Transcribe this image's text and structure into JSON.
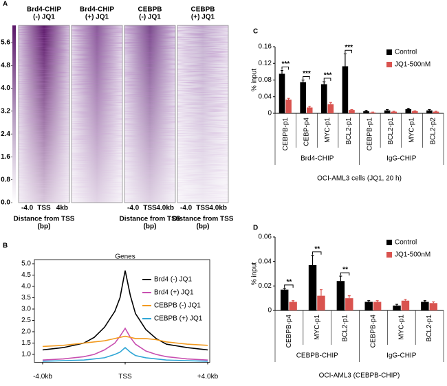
{
  "chart_data": [
    {
      "type": "heatmap",
      "panel": "A",
      "columns": [
        {
          "title": [
            "Brd4-CHIP",
            "(-) JQ1"
          ],
          "xticks": [
            "-4.0",
            "TSS",
            "4kb"
          ],
          "xlabel": [
            "Distance from TSS",
            "(bp)"
          ]
        },
        {
          "title": [
            "Brd4-CHIP",
            "(+) JQ1"
          ]
        },
        {
          "title": [
            "CEBPB",
            "(-) JQ1"
          ],
          "xticks": [
            "-4.0",
            "TSS",
            "4.0kb"
          ],
          "xlabel": [
            "Distance from TSS",
            "(bp)"
          ]
        },
        {
          "title": [
            "CEBPB",
            "(+) JQ1"
          ],
          "xticks": [
            "-4.0",
            "TSS",
            "4.0kb"
          ],
          "xlabel": [
            "Distance from TSS",
            "(bp)"
          ]
        }
      ],
      "clim": [
        0,
        6.2
      ],
      "cticks": [
        5.6,
        4.8,
        {
          "value": 4,
          "label": "4.0"
        },
        3.2,
        2.4,
        1.6,
        0.8,
        {
          "value": 0,
          "label": "0.0"
        }
      ],
      "colors": [
        "#ffffff",
        "#5b1769"
      ]
    },
    {
      "type": "line",
      "panel": "B",
      "title": "Genes",
      "x": [
        -4,
        -3,
        -2,
        -1.5,
        -1,
        -0.5,
        -0.25,
        0,
        0.25,
        0.5,
        1,
        1.5,
        2,
        3,
        4
      ],
      "xlim": [
        -4,
        4
      ],
      "xticks": [
        {
          "value": -4,
          "label": "-4.0kb"
        },
        {
          "value": 0,
          "label": "TSS"
        },
        {
          "value": 4,
          "label": "+4.0kb"
        }
      ],
      "ylim": [
        0.65,
        5
      ],
      "yticks": [
        {
          "value": 1,
          "label": "1.0"
        },
        1.5,
        {
          "value": 2,
          "label": "2.0"
        },
        2.5,
        {
          "value": 3,
          "label": "3.0"
        },
        3.5,
        {
          "value": 4,
          "label": "4.0"
        },
        4.5,
        {
          "value": 5,
          "label": "5.0"
        }
      ],
      "legend": "upper right",
      "series": [
        {
          "name": "Brd4 (-) JQ1",
          "color": "#000000",
          "values": [
            1.2,
            1.3,
            1.5,
            1.75,
            2.2,
            2.9,
            3.5,
            4.7,
            3.6,
            2.8,
            2.1,
            1.7,
            1.45,
            1.3,
            1.2
          ]
        },
        {
          "name": "Brd4 (+) JQ1",
          "color": "#c84fb0",
          "values": [
            0.75,
            0.8,
            0.9,
            1.0,
            1.2,
            1.5,
            1.8,
            2.15,
            1.75,
            1.45,
            1.15,
            1.0,
            0.9,
            0.8,
            0.75
          ]
        },
        {
          "name": "CEBPB (-) JQ1",
          "color": "#f29a1f",
          "values": [
            1.35,
            1.4,
            1.5,
            1.55,
            1.6,
            1.7,
            1.75,
            1.8,
            1.75,
            1.7,
            1.7,
            1.65,
            1.55,
            1.45,
            1.4
          ]
        },
        {
          "name": "CEBPB (+) JQ1",
          "color": "#2fa6d6",
          "values": [
            0.7,
            0.72,
            0.75,
            0.8,
            0.85,
            1.0,
            1.1,
            1.3,
            1.1,
            0.95,
            0.85,
            0.8,
            0.75,
            0.72,
            0.7
          ]
        }
      ]
    },
    {
      "type": "bar",
      "panel": "C",
      "ylabel": "% input",
      "xlabel": "OCI-AML3 cells (JQ1, 20 h)",
      "groups": [
        {
          "name": "Brd4-CHIP",
          "categories": [
            "CEBPB-p1",
            "CEBP-p4",
            "MYC-p1",
            "BCL2-p1"
          ]
        },
        {
          "name": "IgG-CHIP",
          "categories": [
            "CEBPB-p1",
            "BCL2-p1",
            "MYC-p1",
            "BCL2-p2"
          ]
        }
      ],
      "ylim": [
        0,
        0.16
      ],
      "yticks": [
        0,
        0.04,
        0.08,
        0.12,
        0.16
      ],
      "legend": "upper right",
      "series": [
        {
          "name": "Control",
          "color": "#000000",
          "values": [
            0.095,
            0.075,
            0.07,
            0.113,
            0.005,
            0.007,
            0.01,
            0.007
          ],
          "errors": [
            0.008,
            0.005,
            0.006,
            0.03,
            0.002,
            0.002,
            0.002,
            0.002
          ]
        },
        {
          "name": "JQ1-500nM",
          "color": "#d9534f",
          "values": [
            0.033,
            0.014,
            0.022,
            0.008,
            0.002,
            0.004,
            0.005,
            0.004
          ],
          "errors": [
            0.003,
            0.003,
            0.004,
            0.001,
            0.001,
            0.001,
            0.001,
            0.001
          ]
        }
      ],
      "annotations": [
        "***",
        "***",
        "***",
        "***",
        null,
        null,
        null,
        null
      ]
    },
    {
      "type": "bar",
      "panel": "D",
      "ylabel": "% input",
      "xlabel": "OCI-AML3 (CEBPB-CHIP)",
      "groups": [
        {
          "name": "CEBPB-CHIP",
          "categories": [
            "CEBPB-p4",
            "MYC-p1",
            "BCL2-p1"
          ]
        },
        {
          "name": "IgG-CHIP",
          "categories": [
            "CEBPB-p4",
            "MYC-p1",
            "BCL2-p1"
          ]
        }
      ],
      "ylim": [
        0,
        0.06
      ],
      "yticks": [
        0,
        0.02,
        0.04,
        0.06
      ],
      "legend": "upper right",
      "series": [
        {
          "name": "Control",
          "color": "#000000",
          "values": [
            0.017,
            0.037,
            0.024,
            0.007,
            0.004,
            0.007
          ],
          "errors": [
            0.001,
            0.008,
            0.004,
            0.001,
            0.001,
            0.001
          ]
        },
        {
          "name": "JQ1-500nM",
          "color": "#d9534f",
          "values": [
            0.007,
            0.012,
            0.01,
            0.007,
            0.008,
            0.006
          ],
          "errors": [
            0.001,
            0.005,
            0.002,
            0.001,
            0.001,
            0.001
          ]
        }
      ],
      "annotations": [
        "**",
        "**",
        "**",
        null,
        null,
        null
      ]
    }
  ]
}
